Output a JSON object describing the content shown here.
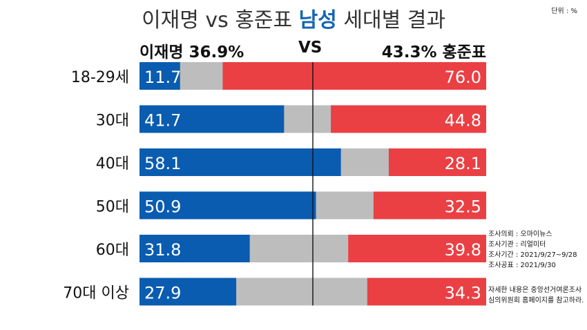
{
  "title": {
    "prefix": "이재명 vs 홍준표 ",
    "highlight": "남성",
    "suffix": " 세대별 결과"
  },
  "unit": "단위 : %",
  "header": {
    "left": "이재명 36.9%",
    "vs": "VS",
    "right": "43.3% 홍준표"
  },
  "notes": [
    "조사의뢰 : 오마이뉴스",
    "조사기관 : 리얼미터",
    "조사기간 : 2021/9/27~9/28",
    "조사공표 : 2021/9/30"
  ],
  "footnote": [
    "자세한 내용은 중앙선거여론조사",
    "심의위원회 홈페이지를 참고하라."
  ],
  "colors": {
    "left": "#0a5cb0",
    "undecided": "#bdbdbd",
    "right": "#ea4044",
    "title_highlight": "#1565b4"
  },
  "chart_data": {
    "type": "bar",
    "stacked": true,
    "orientation": "horizontal",
    "categories": [
      "18-29세",
      "30대",
      "40대",
      "50대",
      "60대",
      "70대 이상"
    ],
    "series": [
      {
        "name": "이재명",
        "values": [
          11.7,
          41.7,
          58.1,
          50.9,
          31.8,
          27.9
        ]
      },
      {
        "name": "홍준표",
        "values": [
          76.0,
          44.8,
          28.1,
          32.5,
          39.8,
          34.3
        ]
      }
    ],
    "remainder_color": "#bdbdbd",
    "xlim": [
      0,
      100
    ],
    "midline": 50
  }
}
